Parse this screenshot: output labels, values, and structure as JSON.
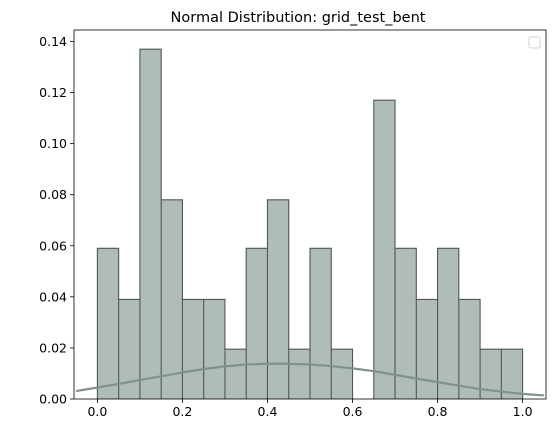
{
  "chart_data": {
    "type": "bar",
    "title": "Normal Distribution: grid_test_bent",
    "xlabel": "",
    "ylabel": "",
    "xlim": [
      -0.055,
      1.055
    ],
    "ylim": [
      0,
      0.1445
    ],
    "x_ticks": [
      0.0,
      0.2,
      0.4,
      0.6,
      0.8,
      1.0
    ],
    "x_tick_labels": [
      "0.0",
      "0.2",
      "0.4",
      "0.6",
      "0.8",
      "1.0"
    ],
    "y_ticks": [
      0.0,
      0.02,
      0.04,
      0.06,
      0.08,
      0.1,
      0.12,
      0.14
    ],
    "y_tick_labels": [
      "0.00",
      "0.02",
      "0.04",
      "0.06",
      "0.08",
      "0.10",
      "0.12",
      "0.14"
    ],
    "grid": false,
    "legend": {
      "position": "top-right",
      "entries": []
    },
    "bin_edges": [
      0.0,
      0.05,
      0.1,
      0.15,
      0.2,
      0.25,
      0.3,
      0.35,
      0.4,
      0.45,
      0.5,
      0.55,
      0.6,
      0.65,
      0.7,
      0.75,
      0.8,
      0.85,
      0.9,
      0.95,
      1.0
    ],
    "values": [
      0.059,
      0.039,
      0.137,
      0.078,
      0.039,
      0.039,
      0.0195,
      0.059,
      0.078,
      0.0195,
      0.059,
      0.0195,
      0,
      0.117,
      0.059,
      0.039,
      0.059,
      0.039,
      0.0195,
      0.0195
    ],
    "curve": {
      "type": "normal-pdf",
      "x": [
        -0.05,
        0.0,
        0.05,
        0.1,
        0.15,
        0.2,
        0.25,
        0.3,
        0.35,
        0.4,
        0.45,
        0.5,
        0.55,
        0.6,
        0.65,
        0.7,
        0.75,
        0.8,
        0.85,
        0.9,
        0.95,
        1.0,
        1.05
      ],
      "y": [
        0.0031,
        0.0045,
        0.0059,
        0.0074,
        0.0089,
        0.0104,
        0.0117,
        0.0128,
        0.0135,
        0.0138,
        0.0138,
        0.0135,
        0.0129,
        0.012,
        0.0109,
        0.0095,
        0.008,
        0.0066,
        0.0052,
        0.0039,
        0.0029,
        0.002,
        0.0014
      ]
    },
    "colors": {
      "bar_fill": "#b0bcb8",
      "bar_edge": "#505755",
      "curve": "#7f928c",
      "axis": "#000000"
    }
  }
}
